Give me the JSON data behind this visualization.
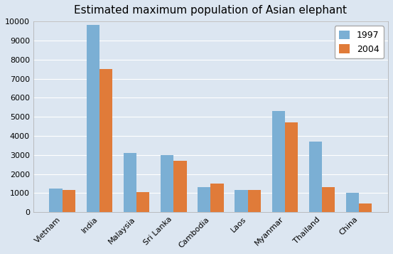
{
  "title": "Estimated maximum population of Asian elephant",
  "categories": [
    "Vietnam",
    "India",
    "Malaysia",
    "Sri Lanka",
    "Cambodia",
    "Laos",
    "Myanmar",
    "Thailand",
    "China"
  ],
  "series": [
    {
      "label": "1997",
      "color": "#7BAFD4",
      "values": [
        1250,
        9800,
        3100,
        3000,
        1300,
        1150,
        5300,
        3700,
        1000
      ]
    },
    {
      "label": "2004",
      "color": "#E07B39",
      "values": [
        1150,
        7500,
        1050,
        2700,
        1500,
        1150,
        4700,
        1300,
        450
      ]
    }
  ],
  "ylim": [
    0,
    10000
  ],
  "yticks": [
    0,
    1000,
    2000,
    3000,
    4000,
    5000,
    6000,
    7000,
    8000,
    9000,
    10000
  ],
  "plot_bg_color": "#dce6f1",
  "fig_bg_color": "#dce6f1",
  "grid_color": "#ffffff",
  "title_fontsize": 11,
  "tick_fontsize": 8,
  "legend_fontsize": 9,
  "bar_width": 0.35,
  "figsize": [
    5.53,
    3.57
  ],
  "dpi": 100
}
